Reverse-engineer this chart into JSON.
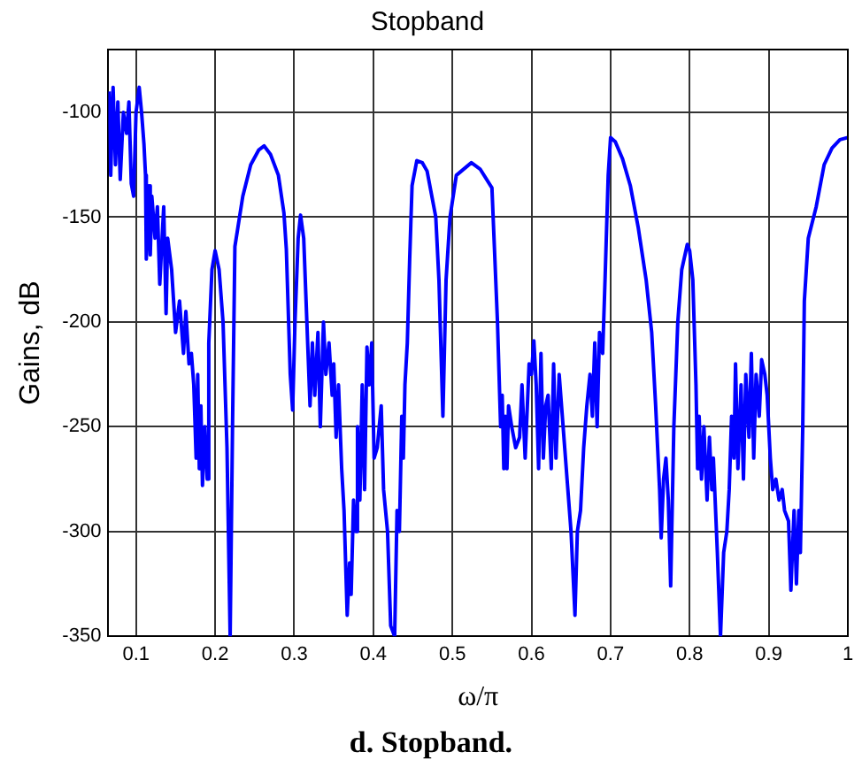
{
  "chart_data": {
    "type": "line",
    "title": "Stopband",
    "xlabel": "ω/π",
    "ylabel": "Gains, dB",
    "annotations": [
      "d. Stopband."
    ],
    "xlim": [
      0.065,
      1
    ],
    "ylim": [
      -350,
      -70
    ],
    "xticks": [
      0.1,
      0.2,
      0.3,
      0.4,
      0.5,
      0.6,
      0.7,
      0.8,
      0.9,
      1
    ],
    "yticks": [
      -350,
      -300,
      -250,
      -200,
      -150,
      -100
    ],
    "grid": true,
    "legend": false,
    "marker": "none",
    "line_style": "solid",
    "series": [
      {
        "color": "#0000ff",
        "x": [
          0.066,
          0.068,
          0.071,
          0.074,
          0.077,
          0.08,
          0.084,
          0.088,
          0.091,
          0.094,
          0.097,
          0.1,
          0.104,
          0.107,
          0.11,
          0.112,
          0.113,
          0.116,
          0.118,
          0.12,
          0.124,
          0.127,
          0.13,
          0.135,
          0.138,
          0.14,
          0.145,
          0.15,
          0.155,
          0.16,
          0.163,
          0.167,
          0.17,
          0.173,
          0.176,
          0.178,
          0.18,
          0.182,
          0.184,
          0.187,
          0.19,
          0.192,
          0.196,
          0.2,
          0.205,
          0.21,
          0.215,
          0.219,
          0.222,
          0.225,
          0.235,
          0.245,
          0.255,
          0.262,
          0.27,
          0.28,
          0.287,
          0.29,
          0.295,
          0.298,
          0.301,
          0.305,
          0.308,
          0.312,
          0.316,
          0.32,
          0.323,
          0.326,
          0.33,
          0.333,
          0.337,
          0.34,
          0.344,
          0.348,
          0.35,
          0.353,
          0.356,
          0.36,
          0.363,
          0.367,
          0.37,
          0.372,
          0.375,
          0.378,
          0.38,
          0.383,
          0.386,
          0.389,
          0.392,
          0.395,
          0.398,
          0.401,
          0.405,
          0.41,
          0.413,
          0.418,
          0.422,
          0.427,
          0.43,
          0.433,
          0.436,
          0.438,
          0.44,
          0.443,
          0.446,
          0.449,
          0.455,
          0.462,
          0.468,
          0.479,
          0.483,
          0.488,
          0.492,
          0.497,
          0.505,
          0.524,
          0.535,
          0.55,
          0.557,
          0.561,
          0.563,
          0.565,
          0.567,
          0.569,
          0.571,
          0.575,
          0.58,
          0.585,
          0.588,
          0.592,
          0.597,
          0.6,
          0.603,
          0.606,
          0.609,
          0.612,
          0.615,
          0.618,
          0.621,
          0.625,
          0.628,
          0.631,
          0.635,
          0.64,
          0.645,
          0.65,
          0.655,
          0.658,
          0.662,
          0.666,
          0.67,
          0.674,
          0.677,
          0.68,
          0.683,
          0.686,
          0.69,
          0.693,
          0.697,
          0.7,
          0.706,
          0.715,
          0.725,
          0.735,
          0.745,
          0.752,
          0.757,
          0.762,
          0.764,
          0.767,
          0.77,
          0.773,
          0.776,
          0.78,
          0.785,
          0.79,
          0.797,
          0.8,
          0.804,
          0.808,
          0.81,
          0.812,
          0.815,
          0.818,
          0.822,
          0.825,
          0.828,
          0.83,
          0.835,
          0.839,
          0.843,
          0.847,
          0.85,
          0.853,
          0.856,
          0.858,
          0.861,
          0.865,
          0.868,
          0.871,
          0.875,
          0.878,
          0.881,
          0.884,
          0.888,
          0.891,
          0.895,
          0.898,
          0.902,
          0.905,
          0.909,
          0.913,
          0.917,
          0.92,
          0.925,
          0.928,
          0.932,
          0.935,
          0.938,
          0.94,
          0.943,
          0.945,
          0.95,
          0.96,
          0.97,
          0.98,
          0.99,
          1
        ],
        "values": [
          -90,
          -130,
          -88,
          -125,
          -95,
          -132,
          -100,
          -110,
          -95,
          -134,
          -140,
          -100,
          -88,
          -100,
          -115,
          -130,
          -170,
          -135,
          -168,
          -140,
          -160,
          -145,
          -182,
          -145,
          -196,
          -160,
          -175,
          -205,
          -190,
          -215,
          -195,
          -220,
          -215,
          -230,
          -265,
          -225,
          -270,
          -240,
          -278,
          -250,
          -275,
          -210,
          -175,
          -166,
          -175,
          -200,
          -260,
          -350,
          -250,
          -164,
          -140,
          -125,
          -118,
          -116,
          -120,
          -130,
          -148,
          -165,
          -225,
          -242,
          -200,
          -160,
          -149,
          -160,
          -200,
          -240,
          -210,
          -235,
          -205,
          -250,
          -200,
          -225,
          -210,
          -235,
          -220,
          -255,
          -230,
          -270,
          -290,
          -340,
          -315,
          -330,
          -285,
          -300,
          -250,
          -285,
          -230,
          -280,
          -212,
          -230,
          -210,
          -265,
          -260,
          -240,
          -280,
          -300,
          -345,
          -350,
          -290,
          -300,
          -245,
          -265,
          -230,
          -210,
          -170,
          -135,
          -123,
          -124,
          -128,
          -150,
          -180,
          -245,
          -180,
          -150,
          -130,
          -124,
          -127,
          -136,
          -200,
          -250,
          -235,
          -270,
          -245,
          -270,
          -240,
          -250,
          -260,
          -255,
          -230,
          -265,
          -220,
          -225,
          -209,
          -230,
          -270,
          -215,
          -265,
          -240,
          -235,
          -270,
          -220,
          -265,
          -225,
          -250,
          -275,
          -300,
          -340,
          -300,
          -290,
          -260,
          -240,
          -225,
          -245,
          -210,
          -250,
          -205,
          -215,
          -180,
          -130,
          -112,
          -114,
          -122,
          -135,
          -155,
          -180,
          -205,
          -240,
          -280,
          -303,
          -275,
          -265,
          -285,
          -326,
          -250,
          -200,
          -175,
          -163,
          -166,
          -180,
          -230,
          -270,
          -245,
          -275,
          -250,
          -285,
          -255,
          -280,
          -265,
          -310,
          -350,
          -310,
          -300,
          -280,
          -245,
          -265,
          -220,
          -270,
          -230,
          -275,
          -225,
          -255,
          -215,
          -265,
          -225,
          -245,
          -218,
          -225,
          -235,
          -265,
          -280,
          -275,
          -285,
          -280,
          -290,
          -295,
          -328,
          -290,
          -325,
          -290,
          -310,
          -250,
          -190,
          -160,
          -145,
          -125,
          -117,
          -113,
          -112
        ]
      }
    ]
  }
}
